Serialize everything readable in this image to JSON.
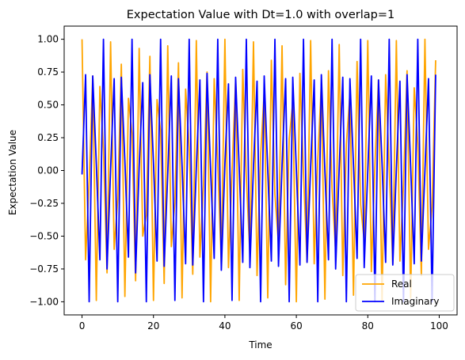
{
  "chart_data": {
    "type": "line",
    "title": "Expectation Value with Dt=1.0 with overlap=1",
    "xlabel": "Time",
    "ylabel": "Expectation Value",
    "xlim": [
      -5,
      105
    ],
    "ylim": [
      -1.1,
      1.1
    ],
    "xticks": [
      0,
      20,
      40,
      60,
      80,
      100
    ],
    "xtick_labels": [
      "0",
      "20",
      "40",
      "60",
      "80",
      "100"
    ],
    "yticks": [
      -1.0,
      -0.75,
      -0.5,
      -0.25,
      0.0,
      0.25,
      0.5,
      0.75,
      1.0
    ],
    "ytick_labels": [
      "−1.00",
      "−0.75",
      "−0.50",
      "−0.25",
      "0.00",
      "0.25",
      "0.50",
      "0.75",
      "1.00"
    ],
    "grid": false,
    "legend_position": "lower-right",
    "x": [
      0,
      1,
      2,
      3,
      4,
      5,
      6,
      7,
      8,
      9,
      10,
      11,
      12,
      13,
      14,
      15,
      16,
      17,
      18,
      19,
      20,
      21,
      22,
      23,
      24,
      25,
      26,
      27,
      28,
      29,
      30,
      31,
      32,
      33,
      34,
      35,
      36,
      37,
      38,
      39,
      40,
      41,
      42,
      43,
      44,
      45,
      46,
      47,
      48,
      49,
      50,
      51,
      52,
      53,
      54,
      55,
      56,
      57,
      58,
      59,
      60,
      61,
      62,
      63,
      64,
      65,
      66,
      67,
      68,
      69,
      70,
      71,
      72,
      73,
      74,
      75,
      76,
      77,
      78,
      79,
      80,
      81,
      82,
      83,
      84,
      85,
      86,
      87,
      88,
      89,
      90,
      91,
      92,
      93,
      94,
      95,
      96,
      97,
      98,
      99
    ],
    "series": [
      {
        "name": "Real",
        "color": "#ffa500",
        "values": [
          1.0,
          -0.68,
          -0.08,
          0.72,
          -0.99,
          0.64,
          0.16,
          -0.78,
          0.98,
          -0.6,
          -0.22,
          0.81,
          -0.96,
          0.55,
          0.28,
          -0.84,
          0.93,
          -0.5,
          -0.34,
          0.87,
          -0.99,
          0.54,
          0.3,
          -0.86,
          0.95,
          -0.58,
          -0.24,
          0.82,
          -0.97,
          0.62,
          0.18,
          -0.79,
          0.99,
          -0.66,
          -0.12,
          0.75,
          -1.0,
          0.7,
          0.06,
          -0.72,
          1.0,
          -0.74,
          0.0,
          0.68,
          -0.99,
          0.77,
          -0.06,
          -0.64,
          0.98,
          -0.8,
          0.12,
          0.6,
          -0.97,
          0.84,
          -0.18,
          -0.56,
          0.95,
          -0.87,
          0.24,
          0.52,
          -1.0,
          0.74,
          -0.02,
          -0.7,
          0.99,
          -0.71,
          0.08,
          0.66,
          -0.98,
          0.76,
          -0.14,
          -0.62,
          0.96,
          -0.8,
          0.2,
          0.58,
          -0.95,
          0.83,
          -0.26,
          -0.54,
          0.99,
          -0.77,
          0.04,
          0.69,
          -1.0,
          0.73,
          0.02,
          -0.71,
          0.99,
          -0.69,
          -0.1,
          0.76,
          -0.97,
          0.63,
          0.2,
          -0.8,
          1.0,
          -0.6,
          -0.28,
          0.84
        ]
      },
      {
        "name": "Imaginary",
        "color": "#0000ff",
        "values": [
          -0.03,
          0.73,
          -1.0,
          0.72,
          0.05,
          -0.68,
          1.0,
          -0.75,
          0.01,
          0.7,
          -1.0,
          0.71,
          0.07,
          -0.66,
          1.0,
          -0.78,
          0.03,
          0.67,
          -1.0,
          0.73,
          0.06,
          -0.69,
          1.0,
          -0.73,
          -0.02,
          0.72,
          -0.99,
          0.7,
          0.04,
          -0.71,
          1.0,
          -0.72,
          0.02,
          0.69,
          -1.0,
          0.74,
          0.0,
          -0.67,
          1.0,
          -0.76,
          0.05,
          0.66,
          -0.99,
          0.71,
          0.02,
          -0.7,
          1.0,
          -0.74,
          0.03,
          0.68,
          -1.0,
          0.72,
          0.0,
          -0.69,
          1.0,
          -0.73,
          0.04,
          0.7,
          -1.0,
          0.71,
          0.01,
          -0.72,
          1.0,
          -0.7,
          0.03,
          0.69,
          -1.0,
          0.73,
          -0.01,
          -0.68,
          1.0,
          -0.75,
          0.02,
          0.71,
          -1.0,
          0.7,
          0.04,
          -0.67,
          1.0,
          -0.74,
          0.0,
          0.72,
          -1.0,
          0.69,
          0.05,
          -0.7,
          1.0,
          -0.72,
          0.01,
          0.68,
          -1.0,
          0.73,
          0.03,
          -0.71,
          1.0,
          -0.69,
          0.0,
          0.7,
          -1.0,
          0.73
        ]
      }
    ]
  }
}
